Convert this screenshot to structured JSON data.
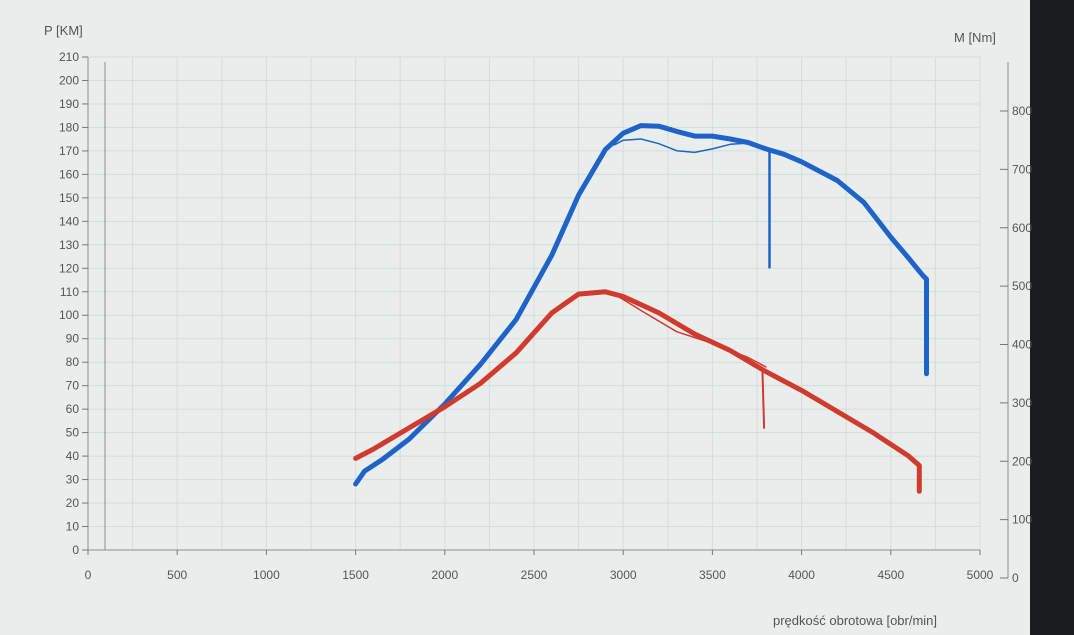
{
  "chart_data": {
    "type": "line",
    "title": "",
    "xlabel": "prędkość obrotowa [obr/min]",
    "ylabel_left": "P [KM]",
    "ylabel_right": "M [Nm]",
    "xlim": [
      0,
      5000
    ],
    "ylim_left": [
      0,
      210
    ],
    "ylim_right": [
      0,
      800
    ],
    "x_ticks": [
      0,
      500,
      1000,
      1500,
      2000,
      2500,
      3000,
      3500,
      4000,
      4500,
      5000
    ],
    "y_left_ticks": [
      0,
      10,
      20,
      30,
      40,
      50,
      60,
      70,
      80,
      90,
      100,
      110,
      120,
      130,
      140,
      150,
      160,
      170,
      180,
      190,
      200,
      210
    ],
    "y_right_ticks": [
      0,
      100,
      200,
      300,
      400,
      500,
      600,
      700,
      800
    ],
    "grid": true,
    "colors": {
      "torque": "#1f63c9",
      "power": "#d13a2e"
    },
    "series": [
      {
        "axis": "right",
        "color": "#1f63c9",
        "width": 5,
        "points": [
          [
            1500,
            161
          ],
          [
            1550,
            183
          ],
          [
            1650,
            203
          ],
          [
            1800,
            238
          ],
          [
            2000,
            298
          ],
          [
            2200,
            366
          ],
          [
            2400,
            443
          ],
          [
            2600,
            553
          ],
          [
            2750,
            656
          ],
          [
            2900,
            734
          ],
          [
            3000,
            762
          ],
          [
            3100,
            775
          ],
          [
            3200,
            774
          ],
          [
            3300,
            765
          ],
          [
            3400,
            757
          ],
          [
            3500,
            757
          ],
          [
            3600,
            752
          ],
          [
            3700,
            746
          ],
          [
            3800,
            735
          ],
          [
            3900,
            726
          ],
          [
            4000,
            713
          ],
          [
            4200,
            681
          ],
          [
            4350,
            643
          ],
          [
            4500,
            584
          ],
          [
            4600,
            548
          ],
          [
            4680,
            518
          ],
          [
            4700,
            512
          ],
          [
            4700,
            350
          ]
        ]
      },
      {
        "axis": "right",
        "color": "#1f63c9",
        "width": 1.5,
        "points": [
          [
            2950,
            742
          ],
          [
            3000,
            750
          ],
          [
            3100,
            752
          ],
          [
            3200,
            744
          ],
          [
            3300,
            732
          ],
          [
            3400,
            729
          ],
          [
            3500,
            735
          ],
          [
            3600,
            743
          ],
          [
            3700,
            745
          ]
        ]
      },
      {
        "axis": "right",
        "color": "#1f63c9",
        "width": 2.5,
        "points": [
          [
            3820,
            732
          ],
          [
            3820,
            532
          ]
        ]
      },
      {
        "axis": "left",
        "color": "#d13a2e",
        "width": 5,
        "points": [
          [
            1500,
            39
          ],
          [
            1600,
            43
          ],
          [
            1800,
            52
          ],
          [
            2000,
            61
          ],
          [
            2200,
            71
          ],
          [
            2400,
            84
          ],
          [
            2600,
            101
          ],
          [
            2750,
            109
          ],
          [
            2900,
            110
          ],
          [
            3000,
            108
          ],
          [
            3200,
            101
          ],
          [
            3400,
            92
          ],
          [
            3600,
            85
          ],
          [
            3800,
            76
          ],
          [
            4000,
            68
          ],
          [
            4200,
            59
          ],
          [
            4400,
            50
          ],
          [
            4600,
            40
          ],
          [
            4660,
            36
          ],
          [
            4660,
            25
          ]
        ]
      },
      {
        "axis": "left",
        "color": "#d13a2e",
        "width": 1.5,
        "points": [
          [
            2950,
            109
          ],
          [
            3100,
            102
          ],
          [
            3300,
            93
          ],
          [
            3500,
            88
          ],
          [
            3700,
            82
          ],
          [
            3800,
            78
          ]
        ]
      },
      {
        "axis": "left",
        "color": "#d13a2e",
        "width": 2,
        "points": [
          [
            3780,
            77
          ],
          [
            3790,
            52
          ]
        ]
      }
    ]
  }
}
